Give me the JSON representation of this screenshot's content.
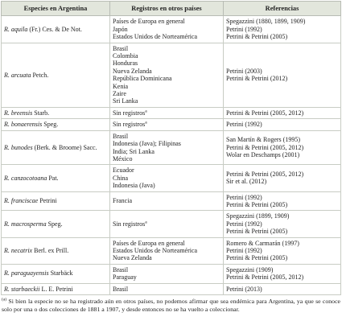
{
  "table": {
    "header": [
      "Especies en Argentina",
      "Registros en otros países",
      "Referencias"
    ],
    "rows": [
      {
        "species": "R. aquila",
        "author": "(Fr.) Ces. & De Not.",
        "records": [
          "Países de Europa en general",
          "Japón",
          "Estados Unidos de Norteamérica"
        ],
        "references": [
          "Spegazzini (1880, 1899, 1909)",
          "Petrini (1992)",
          "Petrini & Petrini (2005)"
        ]
      },
      {
        "species": "R. arcuata",
        "author": "Petch.",
        "records": [
          "Brasil",
          "Colombia",
          "Honduras",
          "Nueva Zelanda",
          "República Dominicana",
          "Kenia",
          "Zaire",
          "Sri Lanka"
        ],
        "references": [
          "Petrini (2003)",
          "Petrini & Petrini (2012)"
        ]
      },
      {
        "species": "R. breensis",
        "author": "Starb.",
        "records": [
          "Sin registros"
        ],
        "note": "a",
        "references": [
          "Petrini & Petrini (2005, 2012)"
        ]
      },
      {
        "species": "R. bonaerensis",
        "author": "Speg.",
        "records": [
          "Sin registros"
        ],
        "note": "a",
        "references": [
          "Petrini (1992)"
        ]
      },
      {
        "species": "R. bunodes",
        "author": "(Berk. & Broome) Sacc.",
        "records": [
          "Brasil",
          "Indonesia (Java); Filipinas",
          "India; Sri Lanka",
          "México"
        ],
        "references": [
          "San Martín & Rogers (1995)",
          "Petrini & Petrini (2005, 2012)",
          "Wolar en Deschamps (2001)"
        ]
      },
      {
        "species": "R. canzocotoana",
        "author": "Pat.",
        "records": [
          "Ecuador",
          "China",
          "Indonesia (Java)"
        ],
        "references": [
          "Petrini & Petrini (2005, 2012)",
          "Sir et al. (2012)"
        ]
      },
      {
        "species": "R. franciscae",
        "author": "Petrini",
        "records": [
          "Francia"
        ],
        "references": [
          "Petrini (1992)",
          "Petrini & Petrini (2005)"
        ]
      },
      {
        "species": "R. macrosperma",
        "author": "Speg.",
        "records": [
          "Sin registros"
        ],
        "note": "a",
        "references": [
          "Spegazzini (1899, 1909)",
          "Petrini (1992)",
          "Petrini & Petrini (2005)"
        ]
      },
      {
        "species": "R. necatrix",
        "author": "Berl. ex Prill.",
        "records": [
          "Países de Europa en general",
          "Estados Unidos de Norteamérica",
          "Nueva Zelanda"
        ],
        "references": [
          "Romero & Carmarán (1997)",
          "Petrini (1992)",
          "Petrini & Petrini (2005)"
        ]
      },
      {
        "species": "R. paraguayensis",
        "author": "Starbäck",
        "records": [
          "Brasil",
          "Paraguay"
        ],
        "references": [
          "Spegazzini (1909)",
          "Petrini & Petrini (2005, 2012)"
        ]
      },
      {
        "species": "R. starbaeckii",
        "author": "L. E. Petrini",
        "records": [
          "Brasil"
        ],
        "references": [
          "Petrini (2013)"
        ]
      }
    ]
  },
  "footnote": {
    "marker": "(a)",
    "text": "Si bien la especie no se ha registrado aún en otros países, no podemos afirmar que sea endémica para Argentina, ya que se conoce solo por una o dos colecciones de 1881 a 1907, y desde entonces no se ha vuelto a coleccionar."
  }
}
